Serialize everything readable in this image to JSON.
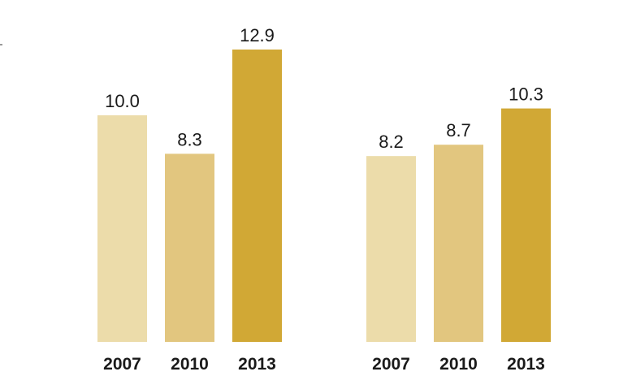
{
  "chart_data": [
    {
      "type": "bar",
      "categories": [
        "2007",
        "2010",
        "2013"
      ],
      "values": [
        10.0,
        8.3,
        12.9
      ],
      "value_labels": [
        "10.0",
        "8.3",
        "12.9"
      ],
      "colors": [
        "#ecdcaa",
        "#e2c67f",
        "#d1a835"
      ],
      "ylim": [
        0,
        12.9
      ],
      "grid": false,
      "title": "",
      "xlabel": "",
      "ylabel": ""
    },
    {
      "type": "bar",
      "categories": [
        "2007",
        "2010",
        "2013"
      ],
      "values": [
        8.2,
        8.7,
        10.3
      ],
      "value_labels": [
        "8.2",
        "8.7",
        "10.3"
      ],
      "colors": [
        "#ecdcaa",
        "#e2c67f",
        "#d1a835"
      ],
      "ylim": [
        0,
        12.9
      ],
      "grid": false,
      "title": "",
      "xlabel": "",
      "ylabel": ""
    }
  ]
}
